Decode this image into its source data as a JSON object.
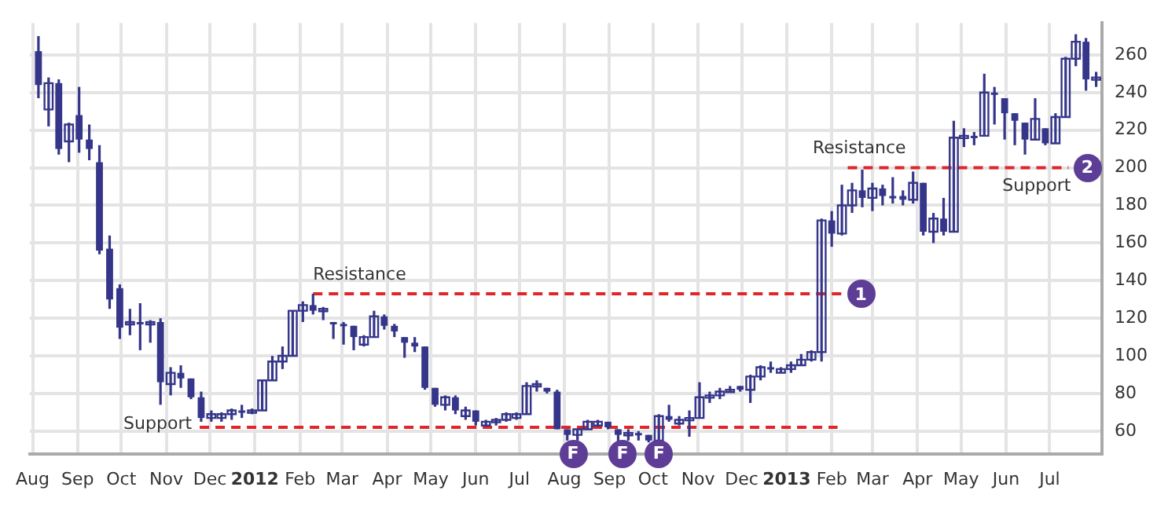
{
  "chart_data": {
    "type": "candlestick",
    "color": "#35358a",
    "x": [
      "2011-08-05",
      "2011-08-12",
      "2011-08-19",
      "2011-08-26",
      "2011-09-02",
      "2011-09-09",
      "2011-09-16",
      "2011-09-23",
      "2011-09-30",
      "2011-10-07",
      "2011-10-14",
      "2011-10-21",
      "2011-10-28",
      "2011-11-04",
      "2011-11-11",
      "2011-11-18",
      "2011-11-25",
      "2011-12-02",
      "2011-12-09",
      "2011-12-16",
      "2011-12-23",
      "2011-12-30",
      "2012-01-06",
      "2012-01-13",
      "2012-01-20",
      "2012-01-27",
      "2012-02-03",
      "2012-02-10",
      "2012-02-17",
      "2012-02-24",
      "2012-03-02",
      "2012-03-09",
      "2012-03-16",
      "2012-03-23",
      "2012-03-30",
      "2012-04-06",
      "2012-04-13",
      "2012-04-20",
      "2012-04-27",
      "2012-05-04",
      "2012-05-11",
      "2012-05-18",
      "2012-05-25",
      "2012-06-01",
      "2012-06-08",
      "2012-06-15",
      "2012-06-22",
      "2012-06-29",
      "2012-07-06",
      "2012-07-13",
      "2012-07-20",
      "2012-07-27",
      "2012-08-03",
      "2012-08-10",
      "2012-08-17",
      "2012-08-24",
      "2012-08-31",
      "2012-09-07",
      "2012-09-14",
      "2012-09-21",
      "2012-09-28",
      "2012-10-05",
      "2012-10-12",
      "2012-10-19",
      "2012-10-26",
      "2012-11-02",
      "2012-11-09",
      "2012-11-16",
      "2012-11-23",
      "2012-11-30",
      "2012-12-07",
      "2012-12-14",
      "2012-12-21",
      "2012-12-28",
      "2013-01-04",
      "2013-01-11",
      "2013-01-18",
      "2013-01-25",
      "2013-02-01",
      "2013-02-08",
      "2013-02-15",
      "2013-02-22",
      "2013-03-01",
      "2013-03-08",
      "2013-03-15",
      "2013-03-22",
      "2013-03-29",
      "2013-04-05",
      "2013-04-12",
      "2013-04-19",
      "2013-04-26",
      "2013-05-03",
      "2013-05-10",
      "2013-05-17",
      "2013-05-24",
      "2013-05-31",
      "2013-06-07",
      "2013-06-14",
      "2013-06-21",
      "2013-06-28",
      "2013-07-05",
      "2013-07-12",
      "2013-07-19",
      "2013-07-26",
      "2013-08-02"
    ],
    "ohlc": [
      [
        262,
        270,
        237,
        244
      ],
      [
        231,
        248,
        222,
        245
      ],
      [
        245,
        247,
        207,
        210
      ],
      [
        214,
        224,
        203,
        223
      ],
      [
        228,
        243,
        208,
        215
      ],
      [
        215,
        223,
        204,
        210
      ],
      [
        203,
        212,
        154,
        156
      ],
      [
        157,
        164,
        125,
        130
      ],
      [
        136,
        138,
        109,
        115
      ],
      [
        117,
        125,
        111,
        118
      ],
      [
        118,
        128,
        103,
        117
      ],
      [
        117,
        119,
        107,
        118
      ],
      [
        118,
        120,
        74,
        86
      ],
      [
        85,
        94,
        79,
        91
      ],
      [
        91,
        95,
        83,
        88
      ],
      [
        88,
        88,
        77,
        78
      ],
      [
        78,
        81,
        65,
        67
      ],
      [
        67,
        71,
        65,
        69
      ],
      [
        67,
        70,
        65,
        69
      ],
      [
        69,
        72,
        66,
        71
      ],
      [
        71,
        74,
        67,
        70
      ],
      [
        70,
        72,
        69,
        71
      ],
      [
        71,
        87,
        71,
        87
      ],
      [
        87,
        100,
        87,
        97
      ],
      [
        97,
        105,
        93,
        100
      ],
      [
        100,
        124,
        100,
        124
      ],
      [
        124,
        129,
        118,
        127
      ],
      [
        127,
        133,
        122,
        124
      ],
      [
        124,
        126,
        119,
        125
      ],
      [
        118,
        118,
        109,
        117
      ],
      [
        117,
        118,
        106,
        116
      ],
      [
        116,
        116,
        103,
        110
      ],
      [
        106,
        111,
        105,
        110
      ],
      [
        110,
        124,
        110,
        121
      ],
      [
        121,
        122,
        114,
        116
      ],
      [
        116,
        117,
        110,
        113
      ],
      [
        110,
        110,
        99,
        107
      ],
      [
        107,
        110,
        102,
        105
      ],
      [
        105,
        105,
        82,
        83
      ],
      [
        83,
        83,
        73,
        74
      ],
      [
        74,
        79,
        71,
        78
      ],
      [
        78,
        79,
        69,
        71
      ],
      [
        68,
        73,
        66,
        71
      ],
      [
        71,
        71,
        63,
        65
      ],
      [
        63,
        66,
        63,
        65
      ],
      [
        65,
        67,
        63,
        66
      ],
      [
        66,
        70,
        65,
        69
      ],
      [
        67,
        70,
        66,
        69
      ],
      [
        69,
        86,
        69,
        84
      ],
      [
        84,
        87,
        81,
        85
      ],
      [
        83,
        83,
        80,
        81
      ],
      [
        81,
        82,
        61,
        61
      ],
      [
        61,
        61,
        55,
        58
      ],
      [
        58,
        61,
        55,
        61
      ],
      [
        61,
        66,
        61,
        65
      ],
      [
        63,
        66,
        63,
        65
      ],
      [
        65,
        65,
        61,
        62
      ],
      [
        61,
        61,
        54,
        58
      ],
      [
        58,
        61,
        55,
        59
      ],
      [
        59,
        60,
        55,
        58
      ],
      [
        58,
        58,
        54,
        55
      ],
      [
        55,
        69,
        55,
        68
      ],
      [
        68,
        74,
        65,
        66
      ],
      [
        64,
        68,
        63,
        66
      ],
      [
        66,
        71,
        57,
        67
      ],
      [
        67,
        86,
        67,
        78
      ],
      [
        78,
        81,
        75,
        79
      ],
      [
        79,
        83,
        77,
        81
      ],
      [
        81,
        84,
        81,
        82
      ],
      [
        84,
        84,
        81,
        82
      ],
      [
        82,
        90,
        75,
        89
      ],
      [
        89,
        95,
        87,
        94
      ],
      [
        94,
        97,
        91,
        93
      ],
      [
        91,
        94,
        91,
        93
      ],
      [
        93,
        97,
        91,
        95
      ],
      [
        95,
        101,
        95,
        98
      ],
      [
        98,
        103,
        97,
        102
      ],
      [
        102,
        173,
        97,
        172
      ],
      [
        172,
        177,
        158,
        165
      ],
      [
        165,
        191,
        164,
        180
      ],
      [
        180,
        192,
        176,
        188
      ],
      [
        188,
        199,
        179,
        184
      ],
      [
        184,
        192,
        177,
        189
      ],
      [
        189,
        191,
        180,
        185
      ],
      [
        185,
        195,
        181,
        185
      ],
      [
        185,
        188,
        180,
        183
      ],
      [
        183,
        198,
        181,
        192
      ],
      [
        192,
        192,
        164,
        166
      ],
      [
        166,
        176,
        160,
        173
      ],
      [
        173,
        184,
        164,
        166
      ],
      [
        166,
        225,
        166,
        216
      ],
      [
        216,
        221,
        211,
        217
      ],
      [
        217,
        219,
        212,
        217
      ],
      [
        217,
        250,
        217,
        240
      ],
      [
        240,
        243,
        223,
        239
      ],
      [
        237,
        237,
        215,
        229
      ],
      [
        229,
        229,
        212,
        225
      ],
      [
        224,
        224,
        207,
        215
      ],
      [
        215,
        237,
        215,
        226
      ],
      [
        221,
        221,
        212,
        213
      ],
      [
        213,
        229,
        213,
        227
      ],
      [
        227,
        259,
        227,
        258
      ],
      [
        258,
        271,
        254,
        267
      ],
      [
        267,
        269,
        241,
        247
      ],
      [
        247,
        251,
        243,
        248
      ]
    ],
    "series": [
      {
        "type": "line",
        "color": "#e0252b",
        "line_style": "dashed",
        "x": [
          "2011-11-24",
          "2013-02-05"
        ],
        "values": [
          62,
          62
        ]
      },
      {
        "type": "line",
        "color": "#e0252b",
        "line_style": "dashed",
        "x": [
          "2012-02-10",
          "2013-02-08"
        ],
        "values": [
          133,
          133
        ]
      },
      {
        "type": "line",
        "color": "#e0252b",
        "line_style": "dashed",
        "x": [
          "2013-02-12",
          "2013-07-14"
        ],
        "values": [
          200,
          200
        ]
      }
    ],
    "xlim": [
      "2011-07-30",
      "2013-08-06"
    ],
    "xticks": [
      {
        "value": "2011-08-01",
        "label": "Aug"
      },
      {
        "value": "2011-09-01",
        "label": "Sep"
      },
      {
        "value": "2011-10-01",
        "label": "Oct"
      },
      {
        "value": "2011-11-01",
        "label": "Nov"
      },
      {
        "value": "2011-12-01",
        "label": "Dec"
      },
      {
        "value": "2012-01-01",
        "label": "2012"
      },
      {
        "value": "2012-02-01",
        "label": "Feb"
      },
      {
        "value": "2012-03-01",
        "label": "Mar"
      },
      {
        "value": "2012-04-01",
        "label": "Apr"
      },
      {
        "value": "2012-05-01",
        "label": "May"
      },
      {
        "value": "2012-06-01",
        "label": "Jun"
      },
      {
        "value": "2012-07-01",
        "label": "Jul"
      },
      {
        "value": "2012-08-01",
        "label": "Aug"
      },
      {
        "value": "2012-09-01",
        "label": "Sep"
      },
      {
        "value": "2012-10-01",
        "label": "Oct"
      },
      {
        "value": "2012-11-01",
        "label": "Nov"
      },
      {
        "value": "2012-12-01",
        "label": "Dec"
      },
      {
        "value": "2013-01-01",
        "label": "2013"
      },
      {
        "value": "2013-02-01",
        "label": "Feb"
      },
      {
        "value": "2013-03-01",
        "label": "Mar"
      },
      {
        "value": "2013-04-01",
        "label": "Apr"
      },
      {
        "value": "2013-05-01",
        "label": "May"
      },
      {
        "value": "2013-06-01",
        "label": "Jun"
      },
      {
        "value": "2013-07-01",
        "label": "Jul"
      }
    ],
    "ylim": [
      48,
      277
    ],
    "yticks": [
      60,
      80,
      100,
      120,
      140,
      160,
      180,
      200,
      220,
      240,
      260
    ],
    "grid": true,
    "annotations": [
      {
        "text": "Support",
        "x": "2011-11-24",
        "y": 62
      },
      {
        "text": "Resistance",
        "x": "2012-03-13",
        "y": 133
      },
      {
        "text": "Resistance",
        "x": "2013-02-20",
        "y": 200
      },
      {
        "text": "Support",
        "x": "2013-06-22",
        "y": 200
      },
      {
        "text": "1",
        "x": "2013-02-08",
        "y": 133
      },
      {
        "text": "2",
        "x": "2013-07-14",
        "y": 200
      },
      {
        "text": "F",
        "x": "2012-08-07",
        "y": 48
      },
      {
        "text": "F",
        "x": "2012-09-10",
        "y": 48
      },
      {
        "text": "F",
        "x": "2012-10-05",
        "y": 48
      }
    ]
  }
}
